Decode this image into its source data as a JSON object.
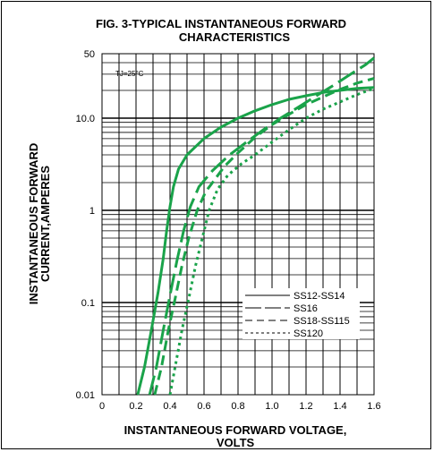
{
  "chart_data": {
    "type": "line",
    "title_line1": "FIG. 3-TYPICAL INSTANTANEOUS FORWARD",
    "title_line2": "CHARACTERISTICS",
    "xlabel_line1": "INSTANTANEOUS FORWARD VOLTAGE,",
    "xlabel_line2": "VOLTS",
    "ylabel_line1": "INSTANTANEOUS FORWARD",
    "ylabel_line2": "CURRENT,AMPERES",
    "annotation": "TJ=25°C",
    "xlim": [
      0,
      1.6
    ],
    "ylim": [
      0.01,
      50
    ],
    "yscale": "log",
    "grid": true,
    "legend_position": "lower-right",
    "x_ticks": [
      {
        "value": 0,
        "label": "0"
      },
      {
        "value": 0.2,
        "label": "0.2"
      },
      {
        "value": 0.4,
        "label": "0.4"
      },
      {
        "value": 0.6,
        "label": "0.6"
      },
      {
        "value": 0.8,
        "label": "0.8"
      },
      {
        "value": 1.0,
        "label": "1.0"
      },
      {
        "value": 1.2,
        "label": "1.2"
      },
      {
        "value": 1.4,
        "label": "1.4"
      },
      {
        "value": 1.6,
        "label": "1.6"
      }
    ],
    "y_ticks": [
      {
        "value": 0.01,
        "label": "0.01"
      },
      {
        "value": 0.1,
        "label": "0.1"
      },
      {
        "value": 1,
        "label": "1"
      },
      {
        "value": 10,
        "label": "10.0"
      },
      {
        "value": 50,
        "label": "50"
      }
    ],
    "line_color": "#1aa34a",
    "series": [
      {
        "name": "SS12-SS14",
        "style": "solid",
        "x": [
          0.21,
          0.25,
          0.29,
          0.33,
          0.36,
          0.38,
          0.4,
          0.42,
          0.45,
          0.5,
          0.6,
          0.7,
          0.8,
          0.9,
          1.0,
          1.1,
          1.2,
          1.3,
          1.4,
          1.5,
          1.6
        ],
        "y": [
          0.01,
          0.02,
          0.05,
          0.13,
          0.3,
          0.6,
          1.1,
          1.8,
          2.8,
          4.0,
          6.0,
          8.0,
          10.0,
          12.0,
          14.0,
          16.0,
          17.5,
          19.0,
          20.0,
          21.0,
          21.5
        ]
      },
      {
        "name": "SS16",
        "style": "long-dash",
        "x": [
          0.28,
          0.32,
          0.36,
          0.4,
          0.44,
          0.48,
          0.52,
          0.57,
          0.65,
          0.75,
          0.85,
          0.95,
          1.05,
          1.15,
          1.25,
          1.35,
          1.45,
          1.55,
          1.6
        ],
        "y": [
          0.01,
          0.02,
          0.05,
          0.12,
          0.28,
          0.6,
          1.1,
          1.8,
          2.7,
          4.0,
          5.5,
          7.5,
          10.0,
          13.0,
          17.0,
          22.0,
          29.0,
          38.0,
          45.0
        ]
      },
      {
        "name": "SS18-SS115",
        "style": "dash",
        "x": [
          0.31,
          0.35,
          0.39,
          0.43,
          0.47,
          0.51,
          0.56,
          0.61,
          0.65,
          0.72,
          0.8,
          0.9,
          1.0,
          1.1,
          1.2,
          1.3,
          1.4,
          1.5,
          1.6
        ],
        "y": [
          0.01,
          0.02,
          0.05,
          0.11,
          0.25,
          0.5,
          1.0,
          1.6,
          2.0,
          3.0,
          4.2,
          6.2,
          8.5,
          11.0,
          14.0,
          17.0,
          20.5,
          24.0,
          27.0
        ]
      },
      {
        "name": "SS120",
        "style": "dot",
        "x": [
          0.4,
          0.43,
          0.47,
          0.51,
          0.55,
          0.59,
          0.63,
          0.68,
          0.74,
          0.82,
          0.9,
          1.0,
          1.1,
          1.2,
          1.3,
          1.4,
          1.5,
          1.6
        ],
        "y": [
          0.01,
          0.02,
          0.05,
          0.11,
          0.25,
          0.5,
          1.0,
          1.7,
          2.4,
          3.2,
          4.0,
          5.5,
          7.5,
          10.0,
          12.5,
          15.0,
          18.0,
          21.0
        ]
      }
    ]
  }
}
